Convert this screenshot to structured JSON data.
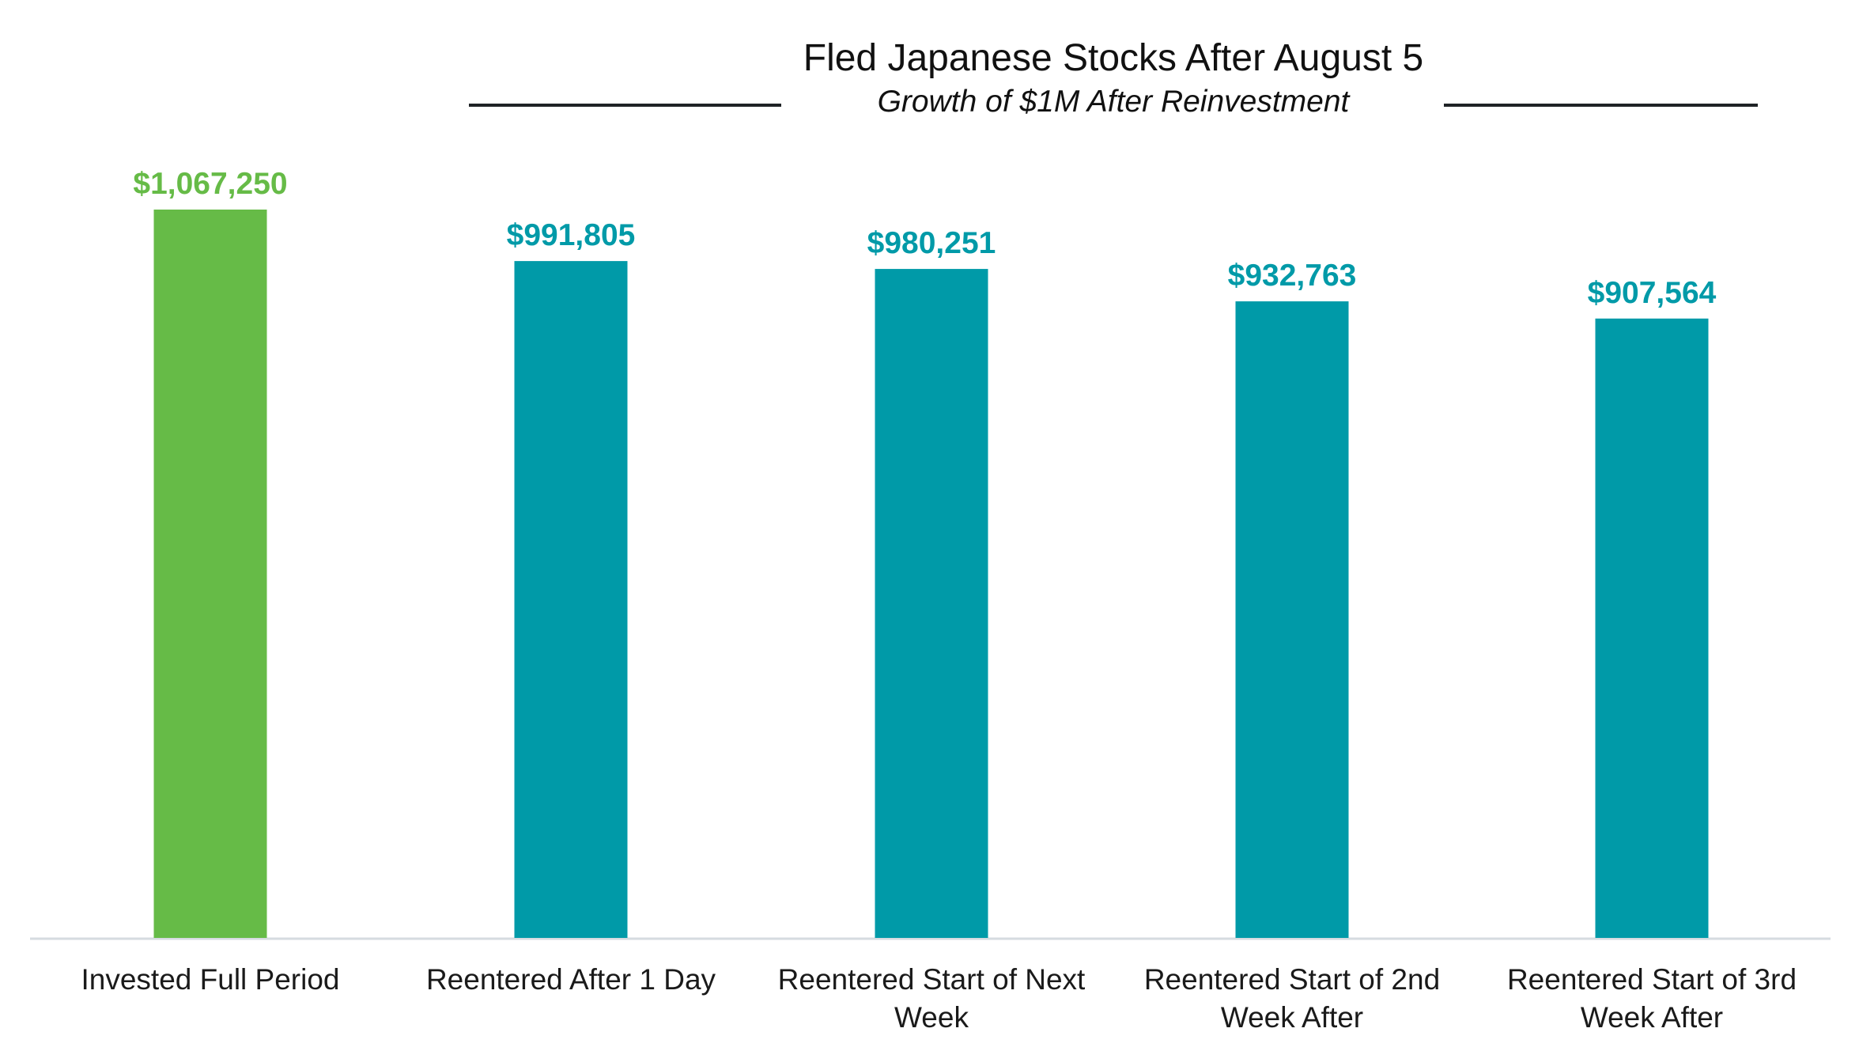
{
  "chart_data": {
    "type": "bar",
    "title": "Fled Japanese Stocks After August 5",
    "subtitle": "Growth of $1M After Reinvestment",
    "categories": [
      [
        "Invested Full Period"
      ],
      [
        "Reentered After 1 Day"
      ],
      [
        "Reentered Start of Next",
        "Week"
      ],
      [
        "Reentered Start of 2nd",
        "Week After"
      ],
      [
        "Reentered Start of 3rd",
        "Week After"
      ]
    ],
    "values": [
      1067250,
      991805,
      980251,
      932763,
      907564
    ],
    "value_labels": [
      "$1,067,250",
      "$991,805",
      "$980,251",
      "$932,763",
      "$907,564"
    ],
    "bar_colors": [
      "#66BB47",
      "#009AA8",
      "#009AA8",
      "#009AA8",
      "#009AA8"
    ],
    "ylim": [
      0,
      1067250
    ],
    "grid": false,
    "legend": "none"
  }
}
